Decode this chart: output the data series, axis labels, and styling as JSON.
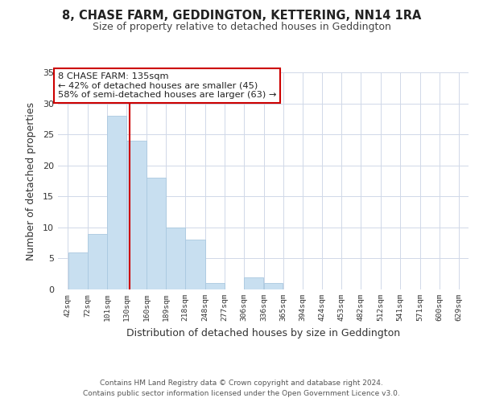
{
  "title": "8, CHASE FARM, GEDDINGTON, KETTERING, NN14 1RA",
  "subtitle": "Size of property relative to detached houses in Geddington",
  "xlabel": "Distribution of detached houses by size in Geddington",
  "ylabel": "Number of detached properties",
  "footer_line1": "Contains HM Land Registry data © Crown copyright and database right 2024.",
  "footer_line2": "Contains public sector information licensed under the Open Government Licence v3.0.",
  "bin_edges": [
    42,
    72,
    101,
    130,
    160,
    189,
    218,
    248,
    277,
    306,
    336,
    365,
    394,
    424,
    453,
    482,
    512,
    541,
    571,
    600,
    629
  ],
  "bin_labels": [
    "42sqm",
    "72sqm",
    "101sqm",
    "130sqm",
    "160sqm",
    "189sqm",
    "218sqm",
    "248sqm",
    "277sqm",
    "306sqm",
    "336sqm",
    "365sqm",
    "394sqm",
    "424sqm",
    "453sqm",
    "482sqm",
    "512sqm",
    "541sqm",
    "571sqm",
    "600sqm",
    "629sqm"
  ],
  "counts": [
    6,
    9,
    28,
    24,
    18,
    10,
    8,
    1,
    0,
    2,
    1,
    0,
    0,
    0,
    0,
    0,
    0,
    0,
    0,
    0
  ],
  "bar_color": "#c8dff0",
  "bar_edgecolor": "#aac8e0",
  "vline_x": 135,
  "vline_color": "#cc0000",
  "annotation_title": "8 CHASE FARM: 135sqm",
  "annotation_line1": "← 42% of detached houses are smaller (45)",
  "annotation_line2": "58% of semi-detached houses are larger (63) →",
  "annotation_box_edgecolor": "#cc0000",
  "ylim": [
    0,
    35
  ],
  "yticks": [
    0,
    5,
    10,
    15,
    20,
    25,
    30,
    35
  ],
  "background_color": "#ffffff",
  "grid_color": "#d0d8e8"
}
